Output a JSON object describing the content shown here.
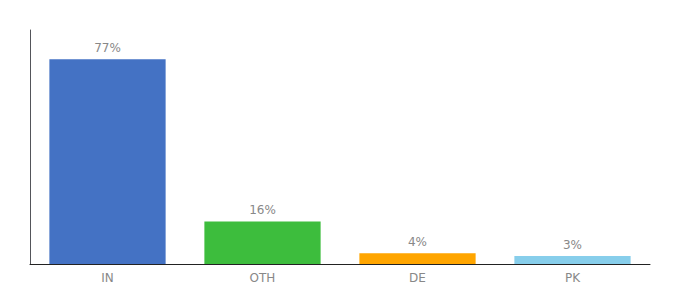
{
  "chart_data": {
    "type": "bar",
    "categories": [
      "IN",
      "OTH",
      "DE",
      "PK"
    ],
    "values": [
      77,
      16,
      4,
      3
    ],
    "value_labels": [
      "77%",
      "16%",
      "4%",
      "3%"
    ],
    "colors": [
      "#4472C4",
      "#3DBD3D",
      "#FFA500",
      "#87CEEB"
    ],
    "ylim": [
      0,
      88
    ],
    "data_labels": true,
    "tick_labels": "x",
    "grid": false
  }
}
